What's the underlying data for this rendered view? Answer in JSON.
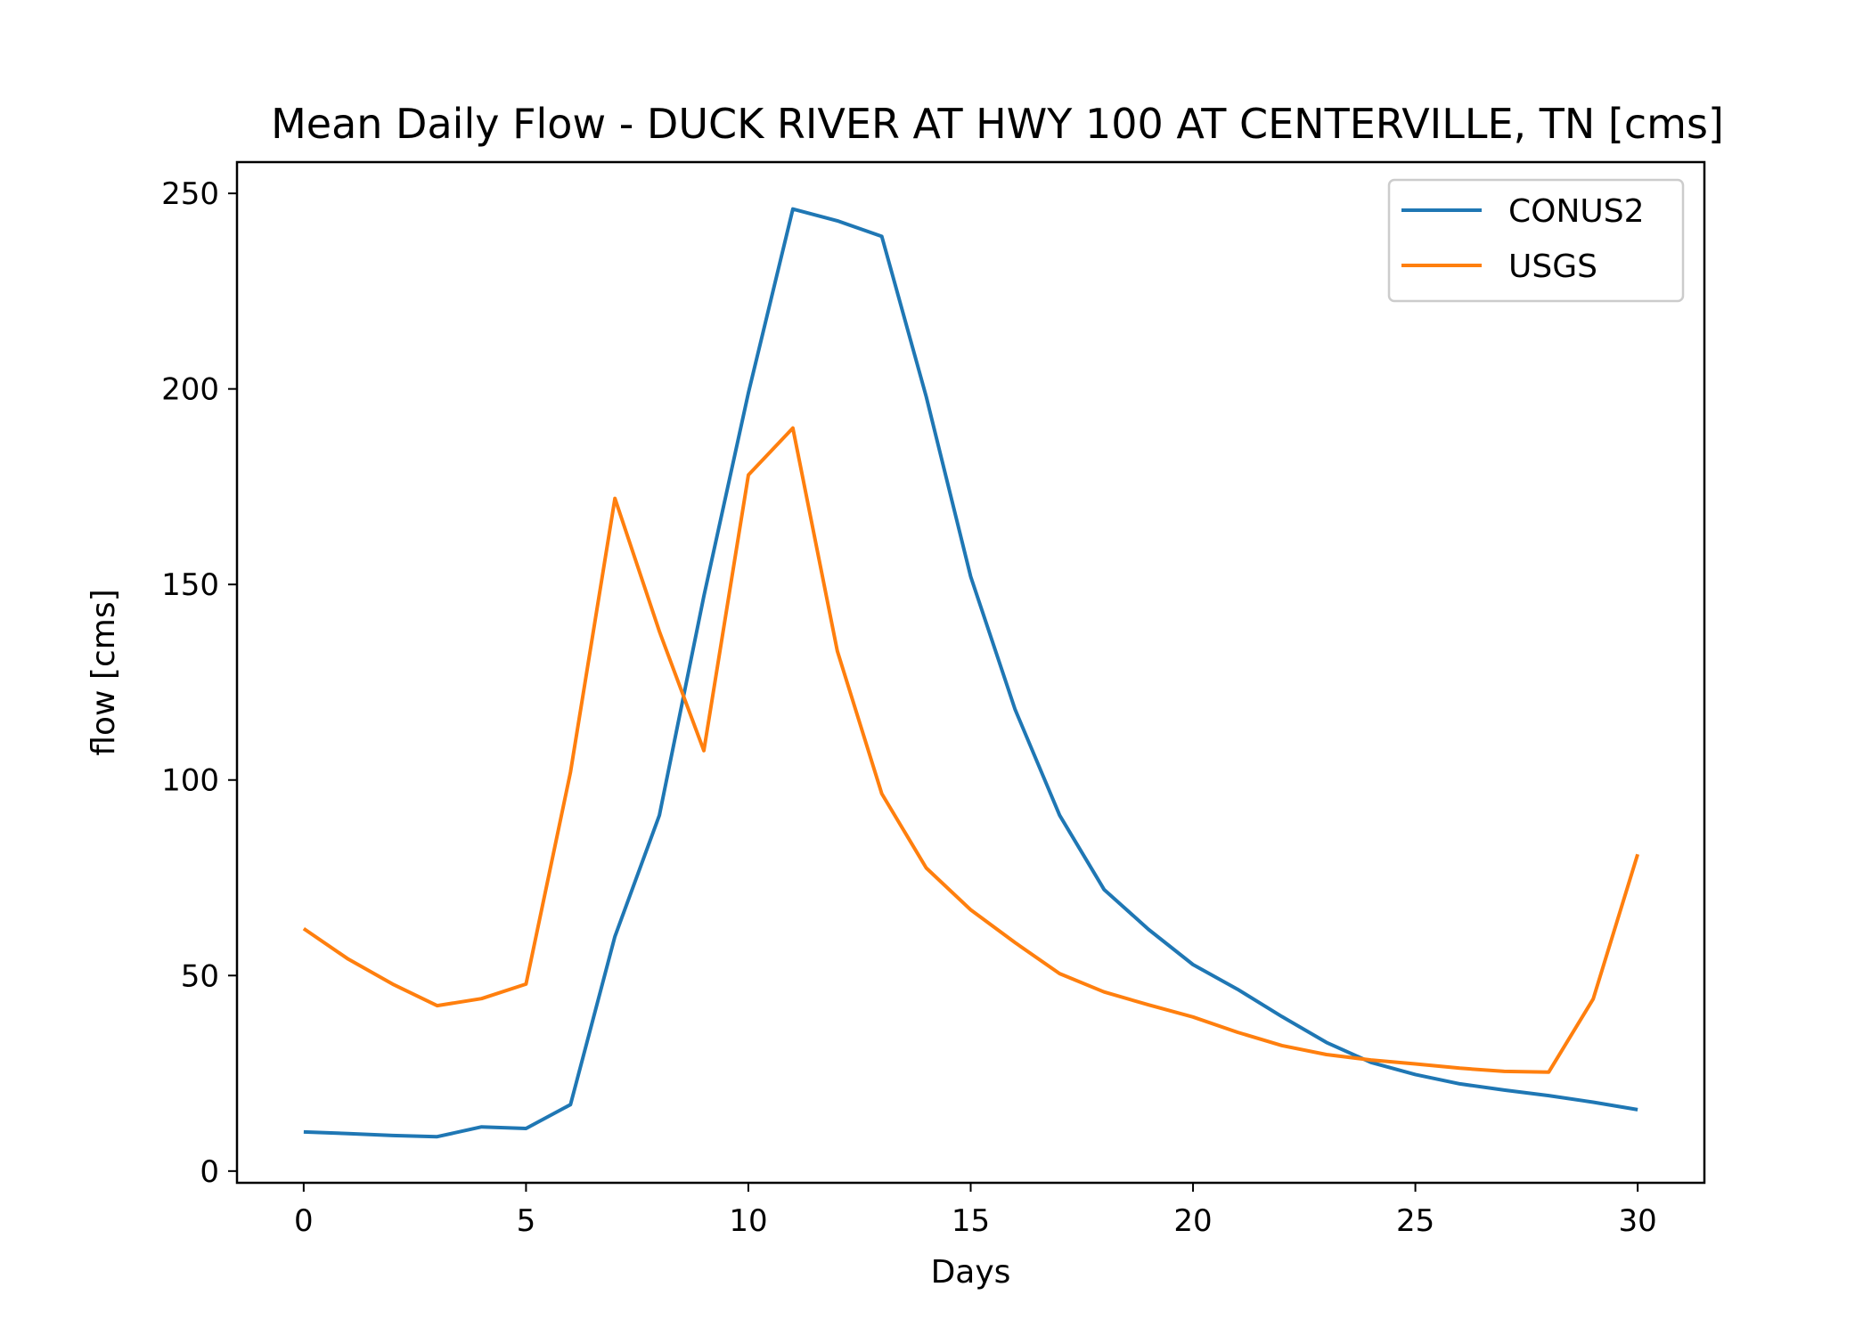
{
  "chart_data": {
    "type": "line",
    "title": "Mean Daily Flow - DUCK RIVER AT HWY 100 AT CENTERVILLE, TN [cms]",
    "xlabel": "Days",
    "ylabel": "flow [cms]",
    "xlim": [
      -1.5,
      31.5
    ],
    "ylim": [
      -3,
      258
    ],
    "xticks": [
      0,
      5,
      10,
      15,
      20,
      25,
      30
    ],
    "yticks": [
      0,
      50,
      100,
      150,
      200,
      250
    ],
    "grid": false,
    "legend_position": "top-right",
    "x": [
      0,
      1,
      2,
      3,
      4,
      5,
      6,
      7,
      8,
      9,
      10,
      11,
      12,
      13,
      14,
      15,
      16,
      17,
      18,
      19,
      20,
      21,
      22,
      23,
      24,
      25,
      26,
      27,
      28,
      29,
      30
    ],
    "series": [
      {
        "name": "CONUS2",
        "color": "#1f77b4",
        "values": [
          10,
          9.6,
          9.1,
          8.8,
          11.3,
          10.9,
          17,
          60,
          91,
          147,
          199,
          246,
          243,
          239,
          198,
          152,
          118,
          91,
          72,
          61.8,
          52.8,
          46.5,
          39.5,
          32.9,
          27.8,
          24.7,
          22.3,
          20.7,
          19.3,
          17.6,
          15.7
        ]
      },
      {
        "name": "USGS",
        "color": "#ff7f0e",
        "values": [
          62,
          54.2,
          47.8,
          42.3,
          44.1,
          47.8,
          102,
          172,
          138,
          107.5,
          178,
          190,
          133,
          96.5,
          77.5,
          66.8,
          58.4,
          50.5,
          45.8,
          42.5,
          39.4,
          35.5,
          32.1,
          29.8,
          28.4,
          27.4,
          26.3,
          25.5,
          25.3,
          44,
          81
        ]
      }
    ]
  }
}
